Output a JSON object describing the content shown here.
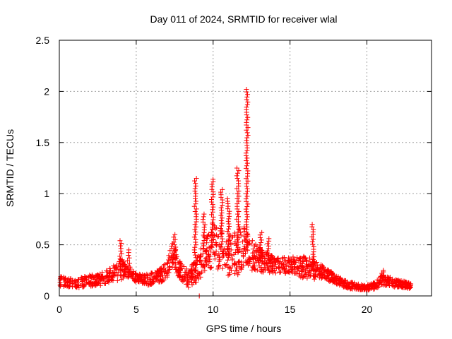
{
  "chart_data": {
    "type": "scatter",
    "title": "Day 011 of 2024, SRMTID for receiver wlal",
    "xlabel": "GPS time / hours",
    "ylabel": "SRMTID / TECUs",
    "xlim": [
      0,
      24.2
    ],
    "ylim": [
      0,
      2.5
    ],
    "x_ticks": [
      0,
      5,
      10,
      15,
      20
    ],
    "x_tick_labels": [
      "0",
      "5",
      "10",
      "15",
      "20"
    ],
    "y_ticks": [
      0,
      0.5,
      1,
      1.5,
      2,
      2.5
    ],
    "y_tick_labels": [
      "0",
      "0.5",
      "1",
      "1.5",
      "2",
      "2.5"
    ],
    "grid": true,
    "marker": "plus",
    "color": "#ff0000",
    "envelope": {
      "x": [
        0,
        0.3,
        0.6,
        1.0,
        1.3,
        1.6,
        2.0,
        2.3,
        2.6,
        3.0,
        3.3,
        3.6,
        3.9,
        4.2,
        4.5,
        4.8,
        5.0,
        5.4,
        5.8,
        6.2,
        6.6,
        7.0,
        7.3,
        7.6,
        8.0,
        8.4,
        8.7,
        9.0,
        9.3,
        9.6,
        10.0,
        10.4,
        10.8,
        11.2,
        11.6,
        12.0,
        12.4,
        12.8,
        13.2,
        13.6,
        14.0,
        14.5,
        15.0,
        15.5,
        16.0,
        16.5,
        17.0,
        17.5,
        18.0,
        18.5,
        19.0,
        19.5,
        20.0,
        20.5,
        21.0,
        21.5,
        22.0,
        22.5,
        22.9
      ],
      "base": [
        0.14,
        0.14,
        0.13,
        0.13,
        0.12,
        0.14,
        0.15,
        0.15,
        0.16,
        0.18,
        0.2,
        0.22,
        0.26,
        0.26,
        0.24,
        0.2,
        0.18,
        0.16,
        0.16,
        0.18,
        0.2,
        0.26,
        0.42,
        0.32,
        0.22,
        0.16,
        0.22,
        0.28,
        0.4,
        0.44,
        0.48,
        0.45,
        0.4,
        0.42,
        0.45,
        0.48,
        0.42,
        0.38,
        0.34,
        0.32,
        0.3,
        0.3,
        0.3,
        0.28,
        0.28,
        0.26,
        0.24,
        0.2,
        0.16,
        0.12,
        0.1,
        0.09,
        0.08,
        0.1,
        0.16,
        0.14,
        0.12,
        0.11,
        0.1
      ],
      "spread": [
        0.08,
        0.07,
        0.06,
        0.06,
        0.07,
        0.08,
        0.08,
        0.08,
        0.09,
        0.09,
        0.1,
        0.12,
        0.18,
        0.12,
        0.1,
        0.08,
        0.07,
        0.07,
        0.08,
        0.08,
        0.1,
        0.12,
        0.18,
        0.15,
        0.12,
        0.12,
        0.16,
        0.2,
        0.28,
        0.22,
        0.35,
        0.3,
        0.3,
        0.3,
        0.35,
        0.3,
        0.24,
        0.2,
        0.16,
        0.14,
        0.12,
        0.12,
        0.12,
        0.14,
        0.16,
        0.14,
        0.1,
        0.08,
        0.06,
        0.05,
        0.05,
        0.04,
        0.04,
        0.05,
        0.08,
        0.07,
        0.05,
        0.05,
        0.04
      ]
    },
    "peaks": [
      {
        "x": 4.0,
        "y": 0.54
      },
      {
        "x": 4.5,
        "y": 0.45
      },
      {
        "x": 7.5,
        "y": 0.6
      },
      {
        "x": 8.85,
        "y": 1.15
      },
      {
        "x": 9.4,
        "y": 0.8
      },
      {
        "x": 9.95,
        "y": 1.14
      },
      {
        "x": 10.55,
        "y": 1.04
      },
      {
        "x": 11.0,
        "y": 0.95
      },
      {
        "x": 11.6,
        "y": 1.25
      },
      {
        "x": 12.2,
        "y": 2.02
      },
      {
        "x": 13.1,
        "y": 0.62
      },
      {
        "x": 13.6,
        "y": 0.56
      },
      {
        "x": 16.5,
        "y": 0.7
      },
      {
        "x": 21.0,
        "y": 0.25
      }
    ],
    "outliers": [
      {
        "x": 9.1,
        "y": 0.0
      }
    ]
  }
}
